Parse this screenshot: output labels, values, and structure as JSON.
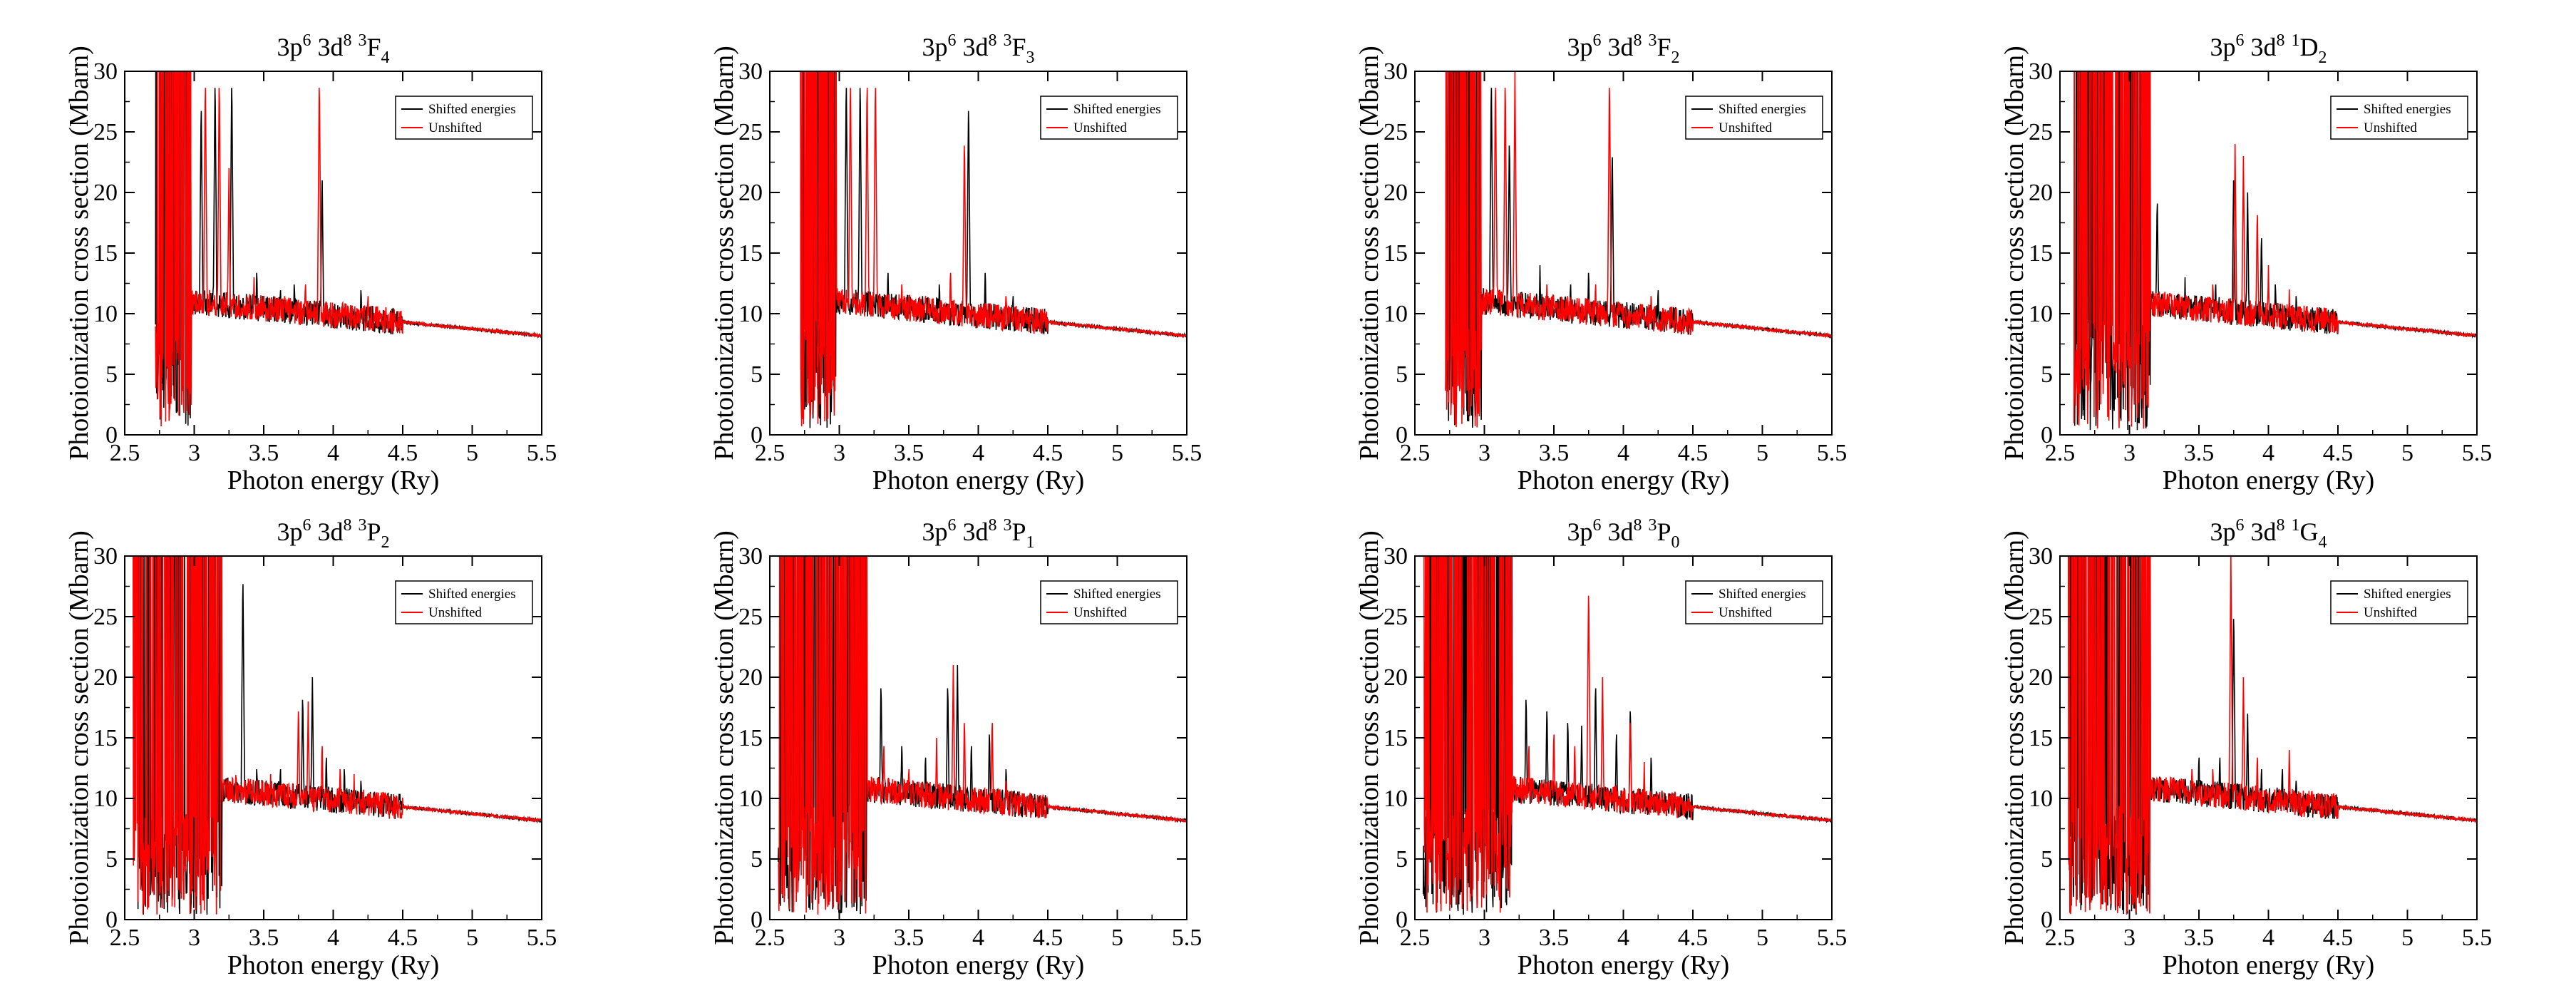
{
  "figure": {
    "description_layout": "2 rows x 4 columns of panels"
  },
  "chart_data": [
    {
      "type": "line",
      "title": {
        "base": "3p",
        "sup1": "6",
        "mid": " 3d",
        "sup2": "8",
        "sup3": "3",
        "term": "F",
        "sub": "4"
      },
      "xlabel": "Photon energy (Ry)",
      "ylabel": "Photoionization cross section (Mbarn)",
      "xlim": [
        2.5,
        5.5
      ],
      "ylim": [
        0,
        30
      ],
      "xticks": [
        "2.5",
        "3",
        "3.5",
        "4",
        "4.5",
        "5",
        "5.5"
      ],
      "yticks": [
        "0",
        "5",
        "10",
        "15",
        "20",
        "25",
        "30"
      ],
      "legend": {
        "position": "top-right",
        "entries": [
          "Shifted energies",
          "Unshifted"
        ]
      },
      "series": [
        {
          "name": "Shifted energies",
          "color": "#000000",
          "threshold": 2.72,
          "edge": 2.98,
          "peaks": [
            [
              3.05,
              28
            ],
            [
              3.15,
              30
            ],
            [
              3.27,
              30
            ],
            [
              3.45,
              14
            ],
            [
              3.62,
              12.5
            ],
            [
              3.72,
              13
            ],
            [
              3.92,
              22
            ],
            [
              4.2,
              12.5
            ]
          ]
        },
        {
          "name": "Unshifted",
          "color": "#ff0000",
          "threshold": 2.72,
          "edge": 2.98,
          "peaks": [
            [
              3.08,
              30
            ],
            [
              3.18,
              30
            ],
            [
              3.25,
              22
            ],
            [
              3.43,
              13
            ],
            [
              3.65,
              12
            ],
            [
              3.8,
              13
            ],
            [
              3.9,
              30
            ],
            [
              4.25,
              12
            ]
          ]
        }
      ]
    },
    {
      "type": "line",
      "title": {
        "base": "3p",
        "sup1": "6",
        "mid": " 3d",
        "sup2": "8",
        "sup3": "3",
        "term": "F",
        "sub": "3"
      },
      "xlabel": "Photon energy (Ry)",
      "ylabel": "Photoionization cross section (Mbarn)",
      "xlim": [
        2.5,
        5.5
      ],
      "ylim": [
        0,
        30
      ],
      "xticks": [
        "2.5",
        "3",
        "3.5",
        "4",
        "4.5",
        "5",
        "5.5"
      ],
      "yticks": [
        "0",
        "5",
        "10",
        "15",
        "20",
        "25",
        "30"
      ],
      "legend": {
        "position": "top-right",
        "entries": [
          "Shifted energies",
          "Unshifted"
        ]
      },
      "series": [
        {
          "name": "Shifted energies",
          "color": "#000000",
          "threshold": 2.72,
          "edge": 2.98,
          "peaks": [
            [
              3.05,
              30
            ],
            [
              3.15,
              30
            ],
            [
              3.35,
              14
            ],
            [
              3.6,
              12
            ],
            [
              3.72,
              13
            ],
            [
              3.93,
              28
            ],
            [
              4.05,
              14
            ],
            [
              4.25,
              12
            ]
          ]
        },
        {
          "name": "Unshifted",
          "color": "#ff0000",
          "threshold": 2.72,
          "edge": 2.98,
          "peaks": [
            [
              3.08,
              30
            ],
            [
              3.2,
              30
            ],
            [
              3.26,
              30
            ],
            [
              3.45,
              13
            ],
            [
              3.62,
              12
            ],
            [
              3.8,
              14
            ],
            [
              3.9,
              25
            ],
            [
              4.2,
              12
            ]
          ]
        }
      ]
    },
    {
      "type": "line",
      "title": {
        "base": "3p",
        "sup1": "6",
        "mid": " 3d",
        "sup2": "8",
        "sup3": "3",
        "term": "F",
        "sub": "2"
      },
      "xlabel": "Photon energy (Ry)",
      "ylabel": "Photoionization cross section (Mbarn)",
      "xlim": [
        2.5,
        5.5
      ],
      "ylim": [
        0,
        30
      ],
      "xticks": [
        "2.5",
        "3",
        "3.5",
        "4",
        "4.5",
        "5",
        "5.5"
      ],
      "yticks": [
        "0",
        "5",
        "10",
        "15",
        "20",
        "25",
        "30"
      ],
      "legend": {
        "position": "top-right",
        "entries": [
          "Shifted energies",
          "Unshifted"
        ]
      },
      "series": [
        {
          "name": "Shifted energies",
          "color": "#000000",
          "threshold": 2.72,
          "edge": 2.98,
          "peaks": [
            [
              3.05,
              30
            ],
            [
              3.18,
              25
            ],
            [
              3.4,
              14
            ],
            [
              3.62,
              13
            ],
            [
              3.75,
              14
            ],
            [
              3.92,
              24
            ],
            [
              4.25,
              12.5
            ]
          ]
        },
        {
          "name": "Unshifted",
          "color": "#ff0000",
          "threshold": 2.72,
          "edge": 2.98,
          "peaks": [
            [
              3.08,
              30
            ],
            [
              3.15,
              30
            ],
            [
              3.22,
              30
            ],
            [
              3.45,
              13
            ],
            [
              3.6,
              12
            ],
            [
              3.8,
              13
            ],
            [
              3.9,
              30
            ],
            [
              4.2,
              12
            ]
          ]
        }
      ]
    },
    {
      "type": "line",
      "title": {
        "base": "3p",
        "sup1": "6",
        "mid": " 3d",
        "sup2": "8",
        "sup3": "1",
        "term": "D",
        "sub": "2"
      },
      "xlabel": "Photon energy (Ry)",
      "ylabel": "Photoionization cross section (Mbarn)",
      "xlim": [
        2.5,
        5.5
      ],
      "ylim": [
        0,
        30
      ],
      "xticks": [
        "2.5",
        "3",
        "3.5",
        "4",
        "4.5",
        "5",
        "5.5"
      ],
      "yticks": [
        "0",
        "5",
        "10",
        "15",
        "20",
        "25",
        "30"
      ],
      "legend": {
        "position": "top-right",
        "entries": [
          "Shifted energies",
          "Unshifted"
        ]
      },
      "series": [
        {
          "name": "Shifted energies",
          "color": "#000000",
          "threshold": 2.6,
          "edge": 3.15,
          "peaks": [
            [
              3.2,
              20
            ],
            [
              3.4,
              13
            ],
            [
              3.62,
              13
            ],
            [
              3.75,
              22
            ],
            [
              3.85,
              20
            ],
            [
              3.95,
              17
            ],
            [
              4.05,
              13
            ],
            [
              4.2,
              12
            ]
          ]
        },
        {
          "name": "Unshifted",
          "color": "#ff0000",
          "threshold": 2.6,
          "edge": 3.15,
          "peaks": [
            [
              3.1,
              28
            ],
            [
              3.3,
              12
            ],
            [
              3.6,
              13
            ],
            [
              3.76,
              24
            ],
            [
              3.82,
              23
            ],
            [
              3.92,
              19
            ],
            [
              4.0,
              14
            ],
            [
              4.15,
              12
            ]
          ]
        }
      ]
    },
    {
      "type": "line",
      "title": {
        "base": "3p",
        "sup1": "6",
        "mid": " 3d",
        "sup2": "8",
        "sup3": "3",
        "term": "P",
        "sub": "2"
      },
      "xlabel": "Photon energy (Ry)",
      "ylabel": "Photoionization cross section (Mbarn)",
      "xlim": [
        2.5,
        5.5
      ],
      "ylim": [
        0,
        30
      ],
      "xticks": [
        "2.5",
        "3",
        "3.5",
        "4",
        "4.5",
        "5",
        "5.5"
      ],
      "yticks": [
        "0",
        "5",
        "10",
        "15",
        "20",
        "25",
        "30"
      ],
      "legend": {
        "position": "top-right",
        "entries": [
          "Shifted energies",
          "Unshifted"
        ]
      },
      "series": [
        {
          "name": "Shifted energies",
          "color": "#000000",
          "threshold": 2.56,
          "edge": 3.2,
          "peaks": [
            [
              3.35,
              29
            ],
            [
              3.45,
              13
            ],
            [
              3.62,
              13
            ],
            [
              3.78,
              19
            ],
            [
              3.85,
              20
            ],
            [
              3.95,
              14
            ],
            [
              4.08,
              13
            ],
            [
              4.2,
              12
            ]
          ]
        },
        {
          "name": "Unshifted",
          "color": "#ff0000",
          "threshold": 2.56,
          "edge": 3.2,
          "peaks": [
            [
              3.3,
              12.5
            ],
            [
              3.55,
              12
            ],
            [
              3.75,
              18
            ],
            [
              3.82,
              18
            ],
            [
              3.92,
              15
            ],
            [
              4.05,
              13
            ],
            [
              4.15,
              12
            ]
          ]
        }
      ]
    },
    {
      "type": "line",
      "title": {
        "base": "3p",
        "sup1": "6",
        "mid": " 3d",
        "sup2": "8",
        "sup3": "3",
        "term": "P",
        "sub": "1"
      },
      "xlabel": "Photon energy (Ry)",
      "ylabel": "Photoionization cross section (Mbarn)",
      "xlim": [
        2.5,
        5.5
      ],
      "ylim": [
        0,
        30
      ],
      "xticks": [
        "2.5",
        "3",
        "3.5",
        "4",
        "4.5",
        "5",
        "5.5"
      ],
      "yticks": [
        "0",
        "5",
        "10",
        "15",
        "20",
        "25",
        "30"
      ],
      "legend": {
        "position": "top-right",
        "entries": [
          "Shifted energies",
          "Unshifted"
        ]
      },
      "series": [
        {
          "name": "Shifted energies",
          "color": "#000000",
          "threshold": 2.56,
          "edge": 3.2,
          "peaks": [
            [
              3.3,
              20
            ],
            [
              3.45,
              15
            ],
            [
              3.62,
              14
            ],
            [
              3.78,
              20
            ],
            [
              3.85,
              21
            ],
            [
              3.95,
              15
            ],
            [
              4.08,
              16
            ],
            [
              4.2,
              13
            ]
          ]
        },
        {
          "name": "Unshifted",
          "color": "#ff0000",
          "threshold": 2.56,
          "edge": 3.2,
          "peaks": [
            [
              3.32,
              15
            ],
            [
              3.5,
              13
            ],
            [
              3.7,
              15
            ],
            [
              3.82,
              21
            ],
            [
              3.9,
              17
            ],
            [
              4.1,
              17
            ],
            [
              4.2,
              12
            ]
          ]
        }
      ]
    },
    {
      "type": "line",
      "title": {
        "base": "3p",
        "sup1": "6",
        "mid": " 3d",
        "sup2": "8",
        "sup3": "3",
        "term": "P",
        "sub": "0"
      },
      "xlabel": "Photon energy (Ry)",
      "ylabel": "Photoionization cross section (Mbarn)",
      "xlim": [
        2.5,
        5.5
      ],
      "ylim": [
        0,
        30
      ],
      "xticks": [
        "2.5",
        "3",
        "3.5",
        "4",
        "4.5",
        "5",
        "5.5"
      ],
      "yticks": [
        "0",
        "5",
        "10",
        "15",
        "20",
        "25",
        "30"
      ],
      "legend": {
        "position": "top-right",
        "entries": [
          "Shifted energies",
          "Unshifted"
        ]
      },
      "series": [
        {
          "name": "Shifted energies",
          "color": "#000000",
          "threshold": 2.56,
          "edge": 3.2,
          "peaks": [
            [
              3.3,
              19
            ],
            [
              3.45,
              18
            ],
            [
              3.6,
              17
            ],
            [
              3.7,
              16
            ],
            [
              3.8,
              20
            ],
            [
              3.95,
              16
            ],
            [
              4.05,
              18
            ],
            [
              4.2,
              14
            ]
          ]
        },
        {
          "name": "Unshifted",
          "color": "#ff0000",
          "threshold": 2.56,
          "edge": 3.2,
          "peaks": [
            [
              3.32,
              15
            ],
            [
              3.5,
              16
            ],
            [
              3.65,
              15
            ],
            [
              3.75,
              28
            ],
            [
              3.85,
              20
            ],
            [
              4.05,
              17
            ],
            [
              4.15,
              13
            ]
          ]
        }
      ]
    },
    {
      "type": "line",
      "title": {
        "base": "3p",
        "sup1": "6",
        "mid": " 3d",
        "sup2": "8",
        "sup3": "1",
        "term": "G",
        "sub": "4"
      },
      "xlabel": "Photon energy (Ry)",
      "ylabel": "Photoionization cross section (Mbarn)",
      "xlim": [
        2.5,
        5.5
      ],
      "ylim": [
        0,
        30
      ],
      "xticks": [
        "2.5",
        "3",
        "3.5",
        "4",
        "4.5",
        "5",
        "5.5"
      ],
      "yticks": [
        "0",
        "5",
        "10",
        "15",
        "20",
        "25",
        "30"
      ],
      "legend": {
        "position": "top-right",
        "entries": [
          "Shifted energies",
          "Unshifted"
        ]
      },
      "series": [
        {
          "name": "Shifted energies",
          "color": "#000000",
          "threshold": 2.56,
          "edge": 3.15,
          "peaks": [
            [
              3.5,
              14
            ],
            [
              3.65,
              14
            ],
            [
              3.75,
              26
            ],
            [
              3.85,
              17
            ],
            [
              3.95,
              13
            ],
            [
              4.1,
              13
            ],
            [
              4.2,
              12
            ]
          ]
        },
        {
          "name": "Unshifted",
          "color": "#ff0000",
          "threshold": 2.56,
          "edge": 3.15,
          "peaks": [
            [
              3.45,
              13
            ],
            [
              3.6,
              13
            ],
            [
              3.73,
              30
            ],
            [
              3.82,
              20
            ],
            [
              3.92,
              14
            ],
            [
              4.15,
              14
            ]
          ]
        }
      ]
    }
  ]
}
